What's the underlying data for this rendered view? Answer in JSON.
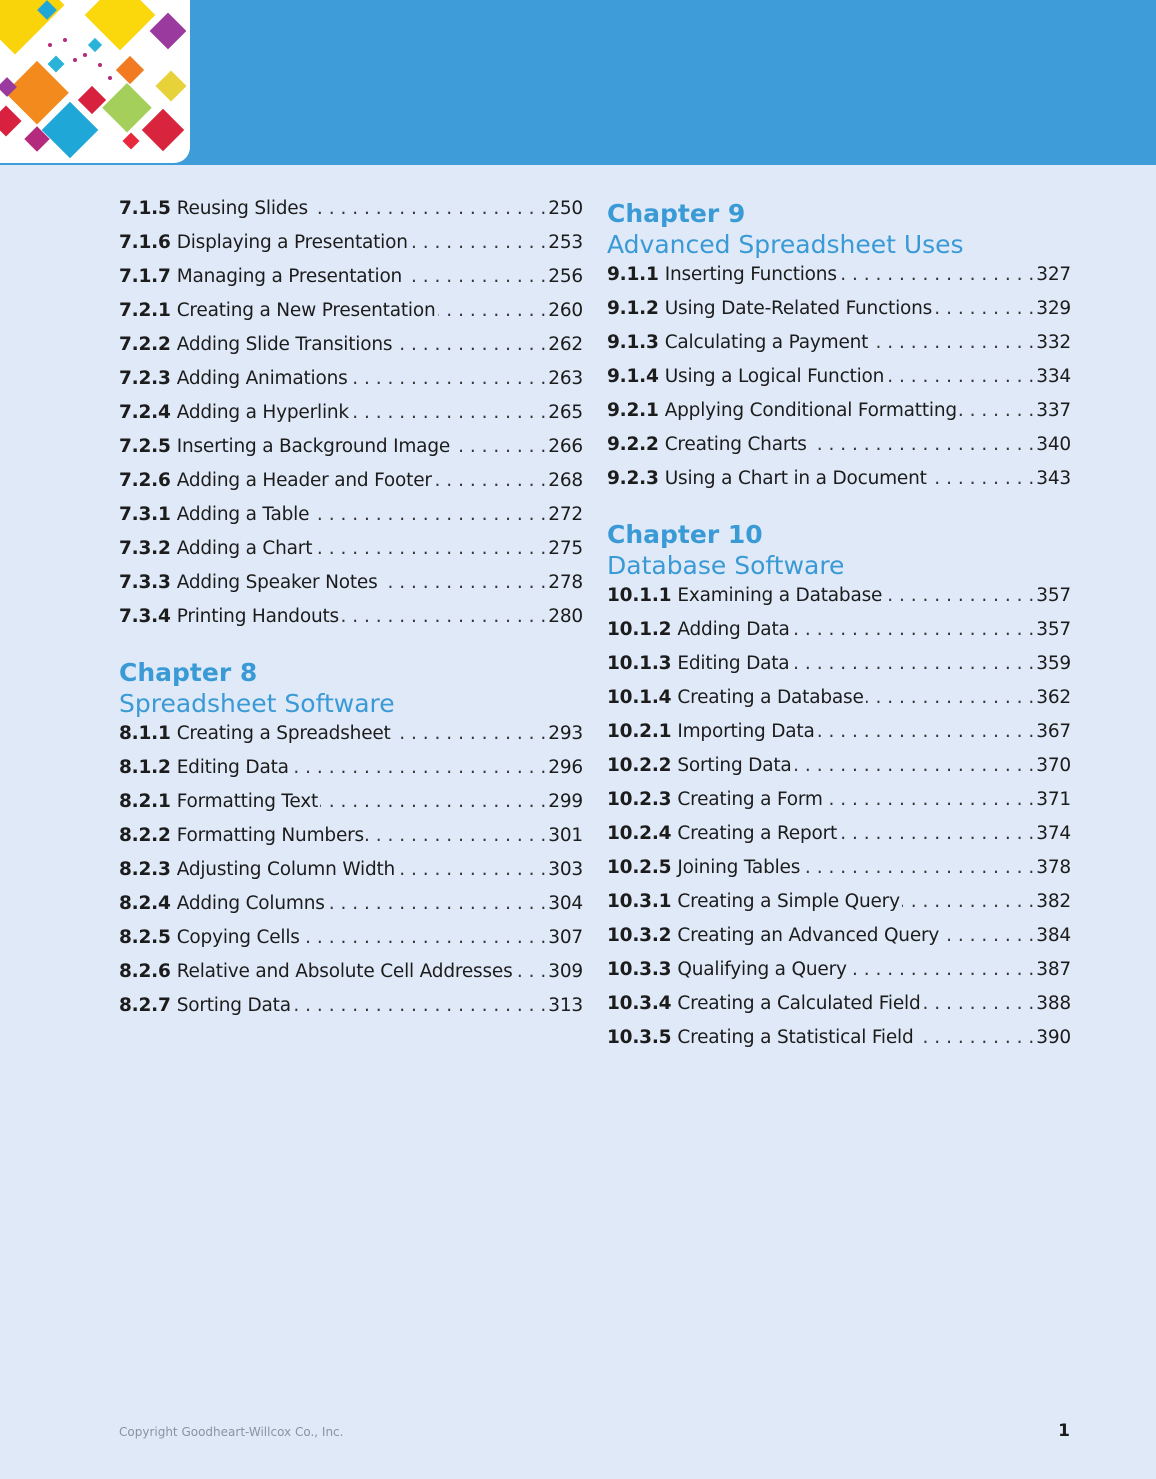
{
  "header": {
    "banner_color": "#3e9cd8",
    "art": "colorful-diamonds-graphic"
  },
  "left_column": {
    "entries_top": [
      {
        "num": "7.1.5",
        "title": "Reusing Slides",
        "page": "250"
      },
      {
        "num": "7.1.6",
        "title": "Displaying a Presentation",
        "page": "253"
      },
      {
        "num": "7.1.7",
        "title": "Managing a Presentation",
        "page": "256"
      },
      {
        "num": "7.2.1",
        "title": "Creating a New Presentation",
        "page": "260"
      },
      {
        "num": "7.2.2",
        "title": "Adding Slide Transitions",
        "page": "262"
      },
      {
        "num": "7.2.3",
        "title": "Adding Animations",
        "page": "263"
      },
      {
        "num": "7.2.4",
        "title": "Adding a Hyperlink",
        "page": "265"
      },
      {
        "num": "7.2.5",
        "title": "Inserting a Background Image",
        "page": "266"
      },
      {
        "num": "7.2.6",
        "title": "Adding a Header and Footer",
        "page": "268"
      },
      {
        "num": "7.3.1",
        "title": "Adding a Table",
        "page": "272"
      },
      {
        "num": "7.3.2",
        "title": "Adding a Chart",
        "page": "275"
      },
      {
        "num": "7.3.3",
        "title": "Adding Speaker Notes",
        "page": "278"
      },
      {
        "num": "7.3.4",
        "title": "Printing Handouts",
        "page": "280"
      }
    ],
    "chapter8": {
      "label": "Chapter 8",
      "title": "Spreadsheet Software",
      "entries": [
        {
          "num": "8.1.1",
          "title": "Creating a Spreadsheet",
          "page": "293"
        },
        {
          "num": "8.1.2",
          "title": "Editing Data",
          "page": "296"
        },
        {
          "num": "8.2.1",
          "title": "Formatting Text",
          "page": "299"
        },
        {
          "num": "8.2.2",
          "title": "Formatting Numbers",
          "page": "301"
        },
        {
          "num": "8.2.3",
          "title": "Adjusting Column Width",
          "page": "303"
        },
        {
          "num": "8.2.4",
          "title": "Adding Columns",
          "page": "304"
        },
        {
          "num": "8.2.5",
          "title": "Copying Cells",
          "page": "307"
        },
        {
          "num": "8.2.6",
          "title": "Relative and Absolute Cell Addresses",
          "page": "309"
        },
        {
          "num": "8.2.7",
          "title": "Sorting Data",
          "page": "313"
        }
      ]
    }
  },
  "right_column": {
    "chapter9": {
      "label": "Chapter 9",
      "title": "Advanced Spreadsheet Uses",
      "entries": [
        {
          "num": "9.1.1",
          "title": "Inserting Functions",
          "page": "327"
        },
        {
          "num": "9.1.2",
          "title": "Using Date-Related Functions",
          "page": "329"
        },
        {
          "num": "9.1.3",
          "title": "Calculating a Payment",
          "page": "332"
        },
        {
          "num": "9.1.4",
          "title": "Using a Logical Function",
          "page": "334"
        },
        {
          "num": "9.2.1",
          "title": "Applying Conditional Formatting",
          "page": "337"
        },
        {
          "num": "9.2.2",
          "title": "Creating Charts",
          "page": "340"
        },
        {
          "num": "9.2.3",
          "title": "Using a Chart in a Document",
          "page": "343"
        }
      ]
    },
    "chapter10": {
      "label": "Chapter 10",
      "title": "Database Software",
      "entries": [
        {
          "num": "10.1.1",
          "title": "Examining a Database",
          "page": "357"
        },
        {
          "num": "10.1.2",
          "title": "Adding Data",
          "page": "357"
        },
        {
          "num": "10.1.3",
          "title": "Editing Data",
          "page": "359"
        },
        {
          "num": "10.1.4",
          "title": "Creating a Database",
          "page": "362"
        },
        {
          "num": "10.2.1",
          "title": "Importing Data",
          "page": "367"
        },
        {
          "num": "10.2.2",
          "title": "Sorting Data",
          "page": "370"
        },
        {
          "num": "10.2.3",
          "title": "Creating a Form",
          "page": "371"
        },
        {
          "num": "10.2.4",
          "title": "Creating a Report",
          "page": "374"
        },
        {
          "num": "10.2.5",
          "title": "Joining Tables",
          "page": "378"
        },
        {
          "num": "10.3.1",
          "title": "Creating a Simple Query",
          "page": "382"
        },
        {
          "num": "10.3.2",
          "title": "Creating an Advanced Query",
          "page": "384"
        },
        {
          "num": "10.3.3",
          "title": "Qualifying a Query",
          "page": "387"
        },
        {
          "num": "10.3.4",
          "title": "Creating a Calculated Field",
          "page": "388"
        },
        {
          "num": "10.3.5",
          "title": "Creating a Statistical Field",
          "page": "390"
        }
      ]
    }
  },
  "footer": {
    "copyright": "Copyright Goodheart-Willcox Co., Inc.",
    "page_number": "1"
  }
}
